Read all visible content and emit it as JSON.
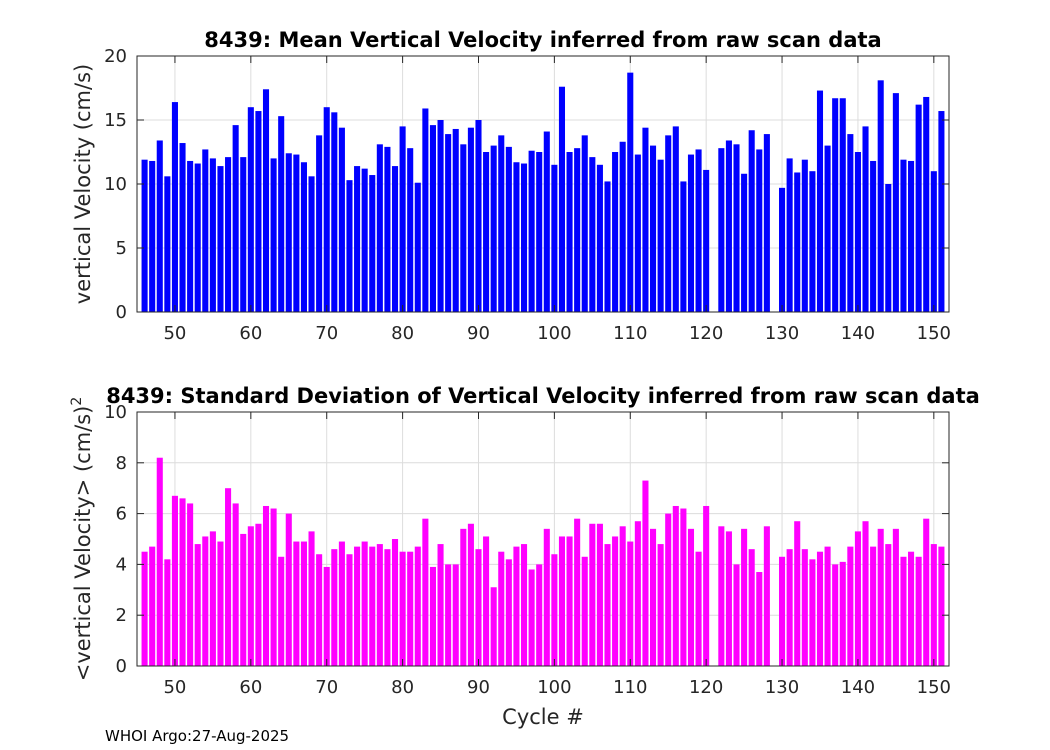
{
  "chart_data": [
    {
      "type": "bar",
      "title": "8439: Mean Vertical Velocity inferred from raw scan data",
      "xlabel": "",
      "ylabel": "vertical Velocity (cm/s)",
      "xlim": [
        45,
        152
      ],
      "ylim": [
        0,
        20
      ],
      "xticks": [
        50,
        60,
        70,
        80,
        90,
        100,
        110,
        120,
        130,
        140,
        150
      ],
      "yticks": [
        0,
        5,
        10,
        15,
        20
      ],
      "grid": true,
      "color": "#0000ff",
      "x": [
        46,
        47,
        48,
        49,
        50,
        51,
        52,
        53,
        54,
        55,
        56,
        57,
        58,
        59,
        60,
        61,
        62,
        63,
        64,
        65,
        66,
        67,
        68,
        69,
        70,
        71,
        72,
        73,
        74,
        75,
        76,
        77,
        78,
        79,
        80,
        81,
        82,
        83,
        84,
        85,
        86,
        87,
        88,
        89,
        90,
        91,
        92,
        93,
        94,
        95,
        96,
        97,
        98,
        99,
        100,
        101,
        102,
        103,
        104,
        105,
        106,
        107,
        108,
        109,
        110,
        111,
        112,
        113,
        114,
        115,
        116,
        117,
        118,
        119,
        120,
        122,
        123,
        124,
        125,
        126,
        127,
        128,
        130,
        131,
        132,
        133,
        134,
        135,
        136,
        137,
        138,
        139,
        140,
        141,
        142,
        143,
        144,
        145,
        146,
        147,
        148,
        149,
        150,
        151
      ],
      "values": [
        11.9,
        11.8,
        13.4,
        10.6,
        16.4,
        13.2,
        11.8,
        11.6,
        12.7,
        12.0,
        11.4,
        12.1,
        14.6,
        12.1,
        16.0,
        15.7,
        17.4,
        12.0,
        15.3,
        12.4,
        12.3,
        11.7,
        10.6,
        13.8,
        16.0,
        15.6,
        14.4,
        10.3,
        11.4,
        11.2,
        10.7,
        13.1,
        12.9,
        11.4,
        14.5,
        12.8,
        10.1,
        15.9,
        14.6,
        15.0,
        13.9,
        14.3,
        13.1,
        14.4,
        15.0,
        12.5,
        13.0,
        13.8,
        12.9,
        11.7,
        11.6,
        12.6,
        12.5,
        14.1,
        11.5,
        17.6,
        12.5,
        12.8,
        13.8,
        12.1,
        11.5,
        10.2,
        12.5,
        13.3,
        18.7,
        12.3,
        14.4,
        13.0,
        11.9,
        13.8,
        14.5,
        10.2,
        12.3,
        12.7,
        11.1,
        12.8,
        13.4,
        13.1,
        10.8,
        14.2,
        12.7,
        13.9,
        9.7,
        12.0,
        10.9,
        11.9,
        11.0,
        17.3,
        13.0,
        16.7,
        16.7,
        13.9,
        12.5,
        14.5,
        11.8,
        18.1,
        10.0,
        17.1,
        11.9,
        11.8,
        16.2,
        16.8,
        11.0,
        15.7
      ]
    },
    {
      "type": "bar",
      "title": "8439: Standard Deviation of Vertical Velocity inferred from raw scan data",
      "xlabel": "Cycle #",
      "ylabel": "<vertical Velocity> (cm/s)",
      "ylabel_superscript": "2",
      "xlim": [
        45,
        152
      ],
      "ylim": [
        0,
        10
      ],
      "xticks": [
        50,
        60,
        70,
        80,
        90,
        100,
        110,
        120,
        130,
        140,
        150
      ],
      "yticks": [
        0,
        2,
        4,
        6,
        8,
        10
      ],
      "grid": true,
      "color": "#ff00ff",
      "x": [
        46,
        47,
        48,
        49,
        50,
        51,
        52,
        53,
        54,
        55,
        56,
        57,
        58,
        59,
        60,
        61,
        62,
        63,
        64,
        65,
        66,
        67,
        68,
        69,
        70,
        71,
        72,
        73,
        74,
        75,
        76,
        77,
        78,
        79,
        80,
        81,
        82,
        83,
        84,
        85,
        86,
        87,
        88,
        89,
        90,
        91,
        92,
        93,
        94,
        95,
        96,
        97,
        98,
        99,
        100,
        101,
        102,
        103,
        104,
        105,
        106,
        107,
        108,
        109,
        110,
        111,
        112,
        113,
        114,
        115,
        116,
        117,
        118,
        119,
        120,
        122,
        123,
        124,
        125,
        126,
        127,
        128,
        130,
        131,
        132,
        133,
        134,
        135,
        136,
        137,
        138,
        139,
        140,
        141,
        142,
        143,
        144,
        145,
        146,
        147,
        148,
        149,
        150,
        151
      ],
      "values": [
        4.5,
        4.7,
        8.2,
        4.2,
        6.7,
        6.6,
        6.4,
        4.8,
        5.1,
        5.3,
        4.9,
        7.0,
        6.4,
        5.2,
        5.5,
        5.6,
        6.3,
        6.2,
        4.3,
        6.0,
        4.9,
        4.9,
        5.3,
        4.4,
        3.9,
        4.6,
        4.9,
        4.4,
        4.7,
        4.9,
        4.7,
        4.8,
        4.6,
        5.0,
        4.5,
        4.5,
        4.7,
        5.8,
        3.9,
        4.8,
        4.0,
        4.0,
        5.4,
        5.6,
        4.6,
        5.1,
        3.1,
        4.5,
        4.2,
        4.7,
        4.8,
        3.8,
        4.0,
        5.4,
        4.4,
        5.1,
        5.1,
        5.8,
        4.3,
        5.6,
        5.6,
        4.8,
        5.1,
        5.5,
        4.9,
        5.7,
        7.3,
        5.4,
        4.8,
        6.0,
        6.3,
        6.2,
        5.4,
        4.5,
        6.3,
        5.5,
        5.3,
        4.0,
        5.4,
        4.6,
        3.7,
        5.5,
        4.3,
        4.6,
        5.7,
        4.6,
        4.2,
        4.5,
        4.7,
        4.0,
        4.1,
        4.7,
        5.3,
        5.7,
        4.7,
        5.4,
        4.8,
        5.4,
        4.3,
        4.5,
        4.3,
        5.8,
        4.8,
        4.7
      ]
    }
  ],
  "footer": "WHOI Argo:27-Aug-2025"
}
